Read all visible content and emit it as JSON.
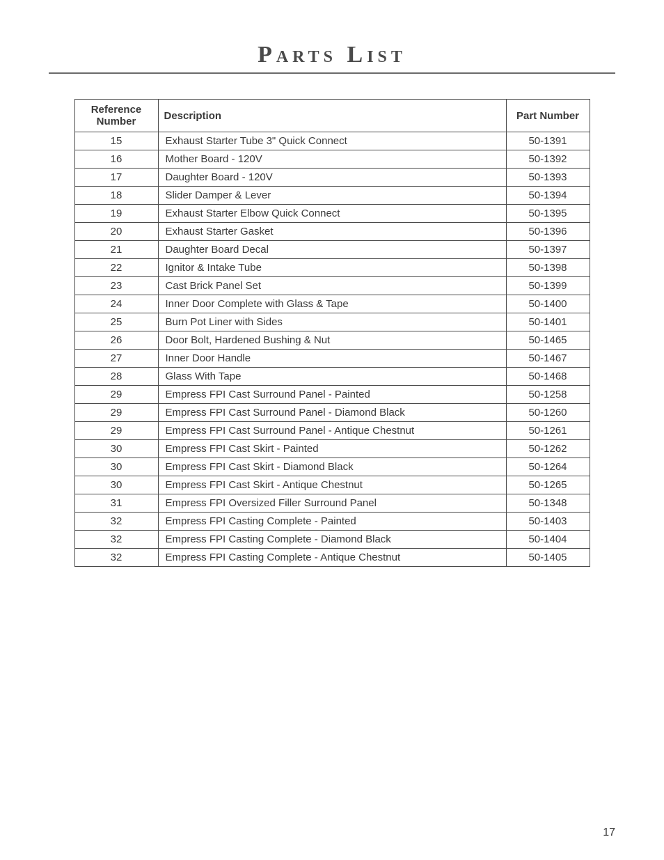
{
  "page": {
    "title": "Parts List",
    "number": "17"
  },
  "table": {
    "headers": {
      "reference": "Reference Number",
      "description": "Description",
      "part": "Part Number"
    },
    "rows": [
      {
        "ref": "15",
        "desc": "Exhaust Starter Tube 3\" Quick Connect",
        "part": "50-1391"
      },
      {
        "ref": "16",
        "desc": "Mother Board - 120V",
        "part": "50-1392"
      },
      {
        "ref": "17",
        "desc": "Daughter Board - 120V",
        "part": "50-1393"
      },
      {
        "ref": "18",
        "desc": "Slider Damper & Lever",
        "part": "50-1394"
      },
      {
        "ref": "19",
        "desc": "Exhaust Starter Elbow Quick Connect",
        "part": "50-1395"
      },
      {
        "ref": "20",
        "desc": "Exhaust Starter Gasket",
        "part": "50-1396"
      },
      {
        "ref": "21",
        "desc": "Daughter Board Decal",
        "part": "50-1397"
      },
      {
        "ref": "22",
        "desc": "Ignitor & Intake Tube",
        "part": "50-1398"
      },
      {
        "ref": "23",
        "desc": "Cast Brick Panel Set",
        "part": "50-1399"
      },
      {
        "ref": "24",
        "desc": "Inner Door Complete with Glass & Tape",
        "part": "50-1400"
      },
      {
        "ref": "25",
        "desc": "Burn Pot Liner with Sides",
        "part": "50-1401"
      },
      {
        "ref": "26",
        "desc": "Door Bolt, Hardened Bushing & Nut",
        "part": "50-1465"
      },
      {
        "ref": "27",
        "desc": "Inner Door Handle",
        "part": "50-1467"
      },
      {
        "ref": "28",
        "desc": "Glass With Tape",
        "part": "50-1468"
      },
      {
        "ref": "29",
        "desc": "Empress FPI Cast Surround Panel - Painted",
        "part": "50-1258"
      },
      {
        "ref": "29",
        "desc": "Empress FPI Cast Surround Panel - Diamond Black",
        "part": "50-1260"
      },
      {
        "ref": "29",
        "desc": "Empress FPI Cast Surround Panel - Antique Chestnut",
        "part": "50-1261"
      },
      {
        "ref": "30",
        "desc": "Empress FPI Cast Skirt - Painted",
        "part": "50-1262"
      },
      {
        "ref": "30",
        "desc": "Empress FPI Cast Skirt - Diamond Black",
        "part": "50-1264"
      },
      {
        "ref": "30",
        "desc": "Empress FPI Cast Skirt - Antique Chestnut",
        "part": "50-1265"
      },
      {
        "ref": "31",
        "desc": "Empress FPI Oversized Filler Surround Panel",
        "part": "50-1348"
      },
      {
        "ref": "32",
        "desc": "Empress FPI Casting Complete - Painted",
        "part": "50-1403"
      },
      {
        "ref": "32",
        "desc": "Empress FPI Casting Complete - Diamond Black",
        "part": "50-1404"
      },
      {
        "ref": "32",
        "desc": "Empress FPI Casting Complete - Antique Chestnut",
        "part": "50-1405"
      }
    ]
  }
}
